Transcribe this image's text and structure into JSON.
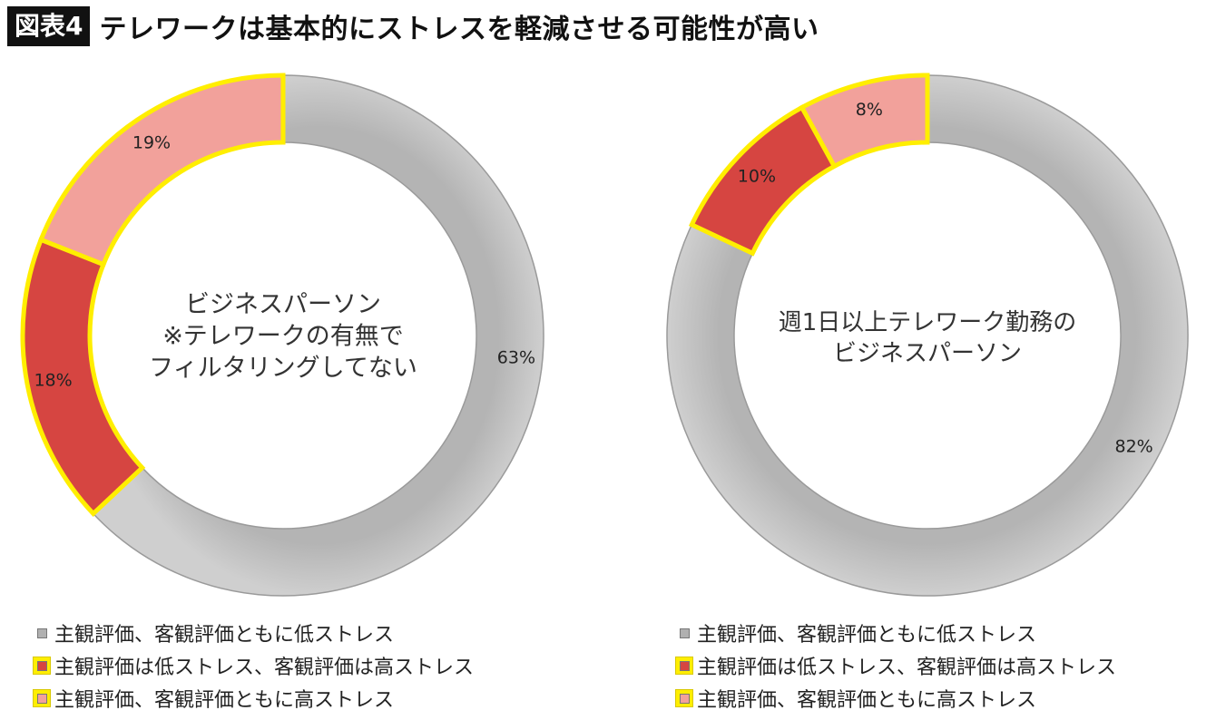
{
  "header": {
    "figure_label": "図表4",
    "title": "テレワークは基本的にストレスを軽減させる可能性が高い"
  },
  "colors": {
    "gray": "#c0c0c0",
    "dark_red": "#d64541",
    "light_red": "#f2a19b",
    "highlight": "#ffee00",
    "gray_border": "#9a9a9a"
  },
  "chart_data": [
    {
      "type": "pie",
      "variant": "donut",
      "center_label": [
        "ビジネスパーソン",
        "※テレワークの有無で",
        "フィルタリングしてない"
      ],
      "slices": [
        {
          "key": "low_both",
          "value": 63,
          "label": "63%",
          "color": "#c0c0c0",
          "highlight": false
        },
        {
          "key": "subj_low_obj_high",
          "value": 18,
          "label": "18%",
          "color": "#d64541",
          "highlight": true
        },
        {
          "key": "high_both",
          "value": 19,
          "label": "19%",
          "color": "#f2a19b",
          "highlight": true
        }
      ],
      "legend": [
        {
          "label": "主観評価、客観評価ともに低ストレス",
          "color": "#b0b0b0",
          "highlight": false
        },
        {
          "label": "主観評価は低ストレス、客観評価は高ストレス",
          "color": "#d64541",
          "highlight": true
        },
        {
          "label": "主観評価、客観評価ともに高ストレス",
          "color": "#f2a19b",
          "highlight": true
        }
      ]
    },
    {
      "type": "pie",
      "variant": "donut",
      "center_label": [
        "週1日以上テレワーク勤務の",
        "ビジネスパーソン"
      ],
      "slices": [
        {
          "key": "low_both",
          "value": 82,
          "label": "82%",
          "color": "#c0c0c0",
          "highlight": false
        },
        {
          "key": "subj_low_obj_high",
          "value": 10,
          "label": "10%",
          "color": "#d64541",
          "highlight": true
        },
        {
          "key": "high_both",
          "value": 8,
          "label": "8%",
          "color": "#f2a19b",
          "highlight": true
        }
      ],
      "legend": [
        {
          "label": "主観評価、客観評価ともに低ストレス",
          "color": "#b0b0b0",
          "highlight": false
        },
        {
          "label": "主観評価は低ストレス、客観評価は高ストレス",
          "color": "#d64541",
          "highlight": true
        },
        {
          "label": "主観評価、客観評価ともに高ストレス",
          "color": "#f2a19b",
          "highlight": true
        }
      ]
    }
  ]
}
